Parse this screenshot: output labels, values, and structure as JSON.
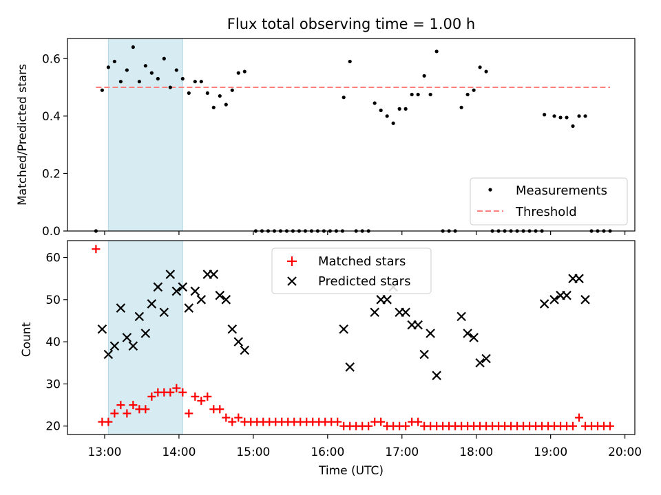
{
  "figure": {
    "title": "Flux total observing time = 1.00 h",
    "xlabel": "Time (UTC)"
  },
  "colors": {
    "measurements": "#000000",
    "threshold": "#ff7f7f",
    "matched": "#ff0000",
    "predicted": "#000000",
    "shade": "#add8e6"
  },
  "chart_data": [
    {
      "type": "scatter",
      "ylabel": "Matched/Predicted stars",
      "xlim": [
        "12:30",
        "20:08"
      ],
      "ylim": [
        0,
        0.67
      ],
      "yticks": [
        "0.0",
        "0.2",
        "0.4",
        "0.6"
      ],
      "xticks": [
        "13:00",
        "14:00",
        "15:00",
        "16:00",
        "17:00",
        "18:00",
        "19:00",
        "20:00"
      ],
      "grid": false,
      "legend_position": "lower right",
      "shaded_region": [
        "13:03",
        "14:03"
      ],
      "series": [
        {
          "name": "Measurements",
          "marker": "dot",
          "points": [
            [
              "12:53",
              0.0
            ],
            [
              "12:58",
              0.49
            ],
            [
              "13:03",
              0.57
            ],
            [
              "13:08",
              0.59
            ],
            [
              "13:13",
              0.52
            ],
            [
              "13:18",
              0.56
            ],
            [
              "13:23",
              0.64
            ],
            [
              "13:28",
              0.52
            ],
            [
              "13:33",
              0.575
            ],
            [
              "13:38",
              0.55
            ],
            [
              "13:43",
              0.53
            ],
            [
              "13:48",
              0.6
            ],
            [
              "13:53",
              0.5
            ],
            [
              "13:58",
              0.56
            ],
            [
              "14:03",
              0.53
            ],
            [
              "14:08",
              0.48
            ],
            [
              "14:13",
              0.52
            ],
            [
              "14:18",
              0.52
            ],
            [
              "14:23",
              0.48
            ],
            [
              "14:28",
              0.43
            ],
            [
              "14:33",
              0.47
            ],
            [
              "14:38",
              0.44
            ],
            [
              "14:43",
              0.49
            ],
            [
              "14:48",
              0.55
            ],
            [
              "14:53",
              0.555
            ],
            [
              "15:02",
              0.0
            ],
            [
              "15:07",
              0.0
            ],
            [
              "15:12",
              0.0
            ],
            [
              "15:17",
              0.0
            ],
            [
              "15:22",
              0.0
            ],
            [
              "15:27",
              0.0
            ],
            [
              "15:32",
              0.0
            ],
            [
              "15:37",
              0.0
            ],
            [
              "15:42",
              0.0
            ],
            [
              "15:47",
              0.0
            ],
            [
              "15:52",
              0.0
            ],
            [
              "15:57",
              0.0
            ],
            [
              "16:02",
              0.0
            ],
            [
              "16:07",
              0.0
            ],
            [
              "16:12",
              0.0
            ],
            [
              "16:13",
              0.465
            ],
            [
              "16:18",
              0.59
            ],
            [
              "16:23",
              0.0
            ],
            [
              "16:28",
              0.0
            ],
            [
              "16:33",
              0.0
            ],
            [
              "16:38",
              0.445
            ],
            [
              "16:43",
              0.42
            ],
            [
              "16:48",
              0.4
            ],
            [
              "16:53",
              0.375
            ],
            [
              "16:58",
              0.425
            ],
            [
              "17:03",
              0.425
            ],
            [
              "17:08",
              0.475
            ],
            [
              "17:13",
              0.475
            ],
            [
              "17:18",
              0.54
            ],
            [
              "17:23",
              0.475
            ],
            [
              "17:28",
              0.625
            ],
            [
              "17:33",
              0.0
            ],
            [
              "17:38",
              0.0
            ],
            [
              "17:43",
              0.0
            ],
            [
              "17:48",
              0.43
            ],
            [
              "17:53",
              0.475
            ],
            [
              "17:58",
              0.49
            ],
            [
              "18:03",
              0.57
            ],
            [
              "18:08",
              0.555
            ],
            [
              "18:13",
              0.0
            ],
            [
              "18:18",
              0.0
            ],
            [
              "18:23",
              0.0
            ],
            [
              "18:28",
              0.0
            ],
            [
              "18:33",
              0.0
            ],
            [
              "18:38",
              0.0
            ],
            [
              "18:43",
              0.0
            ],
            [
              "18:48",
              0.0
            ],
            [
              "18:53",
              0.0
            ],
            [
              "18:55",
              0.405
            ],
            [
              "19:03",
              0.4
            ],
            [
              "19:08",
              0.395
            ],
            [
              "19:13",
              0.395
            ],
            [
              "19:18",
              0.365
            ],
            [
              "19:23",
              0.4
            ],
            [
              "19:28",
              0.4
            ],
            [
              "19:33",
              0.0
            ],
            [
              "19:38",
              0.0
            ],
            [
              "19:43",
              0.0
            ],
            [
              "19:48",
              0.0
            ]
          ]
        },
        {
          "name": "Threshold",
          "style": "dashed",
          "x": [
            "12:53",
            "19:48"
          ],
          "y": [
            0.5,
            0.5
          ]
        }
      ]
    },
    {
      "type": "scatter",
      "ylabel": "Count",
      "xlim": [
        "12:30",
        "20:08"
      ],
      "ylim": [
        18,
        64
      ],
      "yticks": [
        "20",
        "30",
        "40",
        "50",
        "60"
      ],
      "xticks": [
        "13:00",
        "14:00",
        "15:00",
        "16:00",
        "17:00",
        "18:00",
        "19:00",
        "20:00"
      ],
      "grid": false,
      "legend_position": "upper center",
      "shaded_region": [
        "13:03",
        "14:03"
      ],
      "series": [
        {
          "name": "Matched stars",
          "marker": "plus",
          "points": [
            [
              "12:53",
              62
            ],
            [
              "12:58",
              21
            ],
            [
              "13:03",
              21
            ],
            [
              "13:08",
              23
            ],
            [
              "13:13",
              25
            ],
            [
              "13:18",
              23
            ],
            [
              "13:23",
              25
            ],
            [
              "13:28",
              24
            ],
            [
              "13:33",
              24
            ],
            [
              "13:38",
              27
            ],
            [
              "13:43",
              28
            ],
            [
              "13:48",
              28
            ],
            [
              "13:53",
              28
            ],
            [
              "13:58",
              29
            ],
            [
              "14:03",
              28
            ],
            [
              "14:08",
              23
            ],
            [
              "14:13",
              27
            ],
            [
              "14:18",
              26
            ],
            [
              "14:23",
              27
            ],
            [
              "14:28",
              24
            ],
            [
              "14:33",
              24
            ],
            [
              "14:38",
              22
            ],
            [
              "14:43",
              21
            ],
            [
              "14:48",
              22
            ],
            [
              "14:53",
              21
            ],
            [
              "14:58",
              21
            ],
            [
              "15:03",
              21
            ],
            [
              "15:08",
              21
            ],
            [
              "15:13",
              21
            ],
            [
              "15:18",
              21
            ],
            [
              "15:23",
              21
            ],
            [
              "15:28",
              21
            ],
            [
              "15:33",
              21
            ],
            [
              "15:38",
              21
            ],
            [
              "15:43",
              21
            ],
            [
              "15:48",
              21
            ],
            [
              "15:53",
              21
            ],
            [
              "15:58",
              21
            ],
            [
              "16:03",
              21
            ],
            [
              "16:08",
              21
            ],
            [
              "16:13",
              20
            ],
            [
              "16:18",
              20
            ],
            [
              "16:23",
              20
            ],
            [
              "16:28",
              20
            ],
            [
              "16:33",
              20
            ],
            [
              "16:38",
              21
            ],
            [
              "16:43",
              21
            ],
            [
              "16:48",
              20
            ],
            [
              "16:53",
              20
            ],
            [
              "16:58",
              20
            ],
            [
              "17:03",
              20
            ],
            [
              "17:08",
              21
            ],
            [
              "17:13",
              21
            ],
            [
              "17:18",
              20
            ],
            [
              "17:23",
              20
            ],
            [
              "17:28",
              20
            ],
            [
              "17:33",
              20
            ],
            [
              "17:38",
              20
            ],
            [
              "17:43",
              20
            ],
            [
              "17:48",
              20
            ],
            [
              "17:53",
              20
            ],
            [
              "17:58",
              20
            ],
            [
              "18:03",
              20
            ],
            [
              "18:08",
              20
            ],
            [
              "18:13",
              20
            ],
            [
              "18:18",
              20
            ],
            [
              "18:23",
              20
            ],
            [
              "18:28",
              20
            ],
            [
              "18:33",
              20
            ],
            [
              "18:38",
              20
            ],
            [
              "18:43",
              20
            ],
            [
              "18:48",
              20
            ],
            [
              "18:53",
              20
            ],
            [
              "18:58",
              20
            ],
            [
              "19:03",
              20
            ],
            [
              "19:08",
              20
            ],
            [
              "19:13",
              20
            ],
            [
              "19:18",
              20
            ],
            [
              "19:23",
              22
            ],
            [
              "19:28",
              20
            ],
            [
              "19:33",
              20
            ],
            [
              "19:38",
              20
            ],
            [
              "19:43",
              20
            ],
            [
              "19:48",
              20
            ]
          ]
        },
        {
          "name": "Predicted stars",
          "marker": "x",
          "points": [
            [
              "12:58",
              43
            ],
            [
              "13:03",
              37
            ],
            [
              "13:08",
              39
            ],
            [
              "13:13",
              48
            ],
            [
              "13:18",
              41
            ],
            [
              "13:23",
              39
            ],
            [
              "13:28",
              46
            ],
            [
              "13:33",
              42
            ],
            [
              "13:38",
              49
            ],
            [
              "13:43",
              53
            ],
            [
              "13:48",
              47
            ],
            [
              "13:53",
              56
            ],
            [
              "13:58",
              52
            ],
            [
              "14:03",
              53
            ],
            [
              "14:08",
              48
            ],
            [
              "14:13",
              52
            ],
            [
              "14:18",
              50
            ],
            [
              "14:23",
              56
            ],
            [
              "14:28",
              56
            ],
            [
              "14:33",
              51
            ],
            [
              "14:38",
              50
            ],
            [
              "14:43",
              43
            ],
            [
              "14:48",
              40
            ],
            [
              "14:53",
              38
            ],
            [
              "16:13",
              43
            ],
            [
              "16:18",
              34
            ],
            [
              "16:38",
              47
            ],
            [
              "16:43",
              50
            ],
            [
              "16:48",
              50
            ],
            [
              "16:53",
              53
            ],
            [
              "16:58",
              47
            ],
            [
              "17:03",
              47
            ],
            [
              "17:08",
              44
            ],
            [
              "17:13",
              44
            ],
            [
              "17:18",
              37
            ],
            [
              "17:23",
              42
            ],
            [
              "17:28",
              32
            ],
            [
              "17:48",
              46
            ],
            [
              "17:53",
              42
            ],
            [
              "17:58",
              41
            ],
            [
              "18:03",
              35
            ],
            [
              "18:08",
              36
            ],
            [
              "18:55",
              49
            ],
            [
              "19:03",
              50
            ],
            [
              "19:08",
              51
            ],
            [
              "19:13",
              51
            ],
            [
              "19:18",
              55
            ],
            [
              "19:23",
              55
            ],
            [
              "19:28",
              50
            ]
          ]
        }
      ]
    }
  ]
}
